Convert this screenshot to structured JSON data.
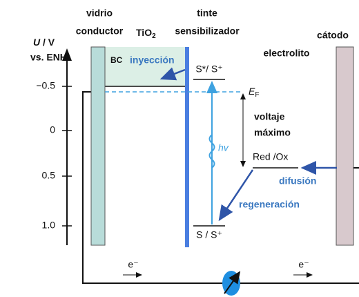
{
  "axis": {
    "symbol": "U",
    "unit": "/ V",
    "reference": "vs. ENH",
    "ticks": [
      "−0.5",
      "0",
      "0.5",
      "1.0"
    ]
  },
  "glass": {
    "line1": "vidrio",
    "line2": "conductor"
  },
  "semiconductor": {
    "label": "TiO",
    "subscript": "2",
    "band": "BC"
  },
  "dye": {
    "line1": "tinte",
    "line2": "sensibilizador",
    "excited": "S*/ S⁺",
    "ground": "S / S⁺",
    "photon": "hv"
  },
  "fermi": {
    "symbol": "E",
    "subscript": "F"
  },
  "voltage": {
    "line1": "voltaje",
    "line2": "máximo"
  },
  "electrolyte": {
    "label": "electrolito",
    "redox": "Red /Ox"
  },
  "cathode": {
    "label": "cátodo"
  },
  "processes": {
    "injection": "inyección",
    "diffusion": "difusión",
    "regeneration": "regeneración"
  },
  "circuit": {
    "electron_left": "e⁻",
    "electron_right": "e⁻"
  }
}
